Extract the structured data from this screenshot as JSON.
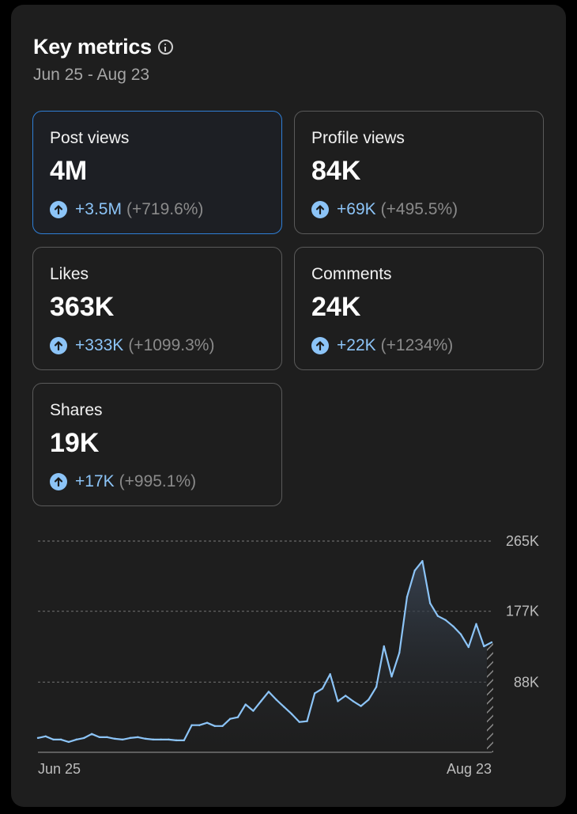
{
  "header": {
    "title": "Key metrics",
    "info_icon": "info-icon",
    "date_range": "Jun 25 - Aug 23"
  },
  "metrics": [
    {
      "label": "Post views",
      "value": "4M",
      "delta": "+3.5M",
      "pct": "(+719.6%)",
      "selected": true
    },
    {
      "label": "Profile views",
      "value": "84K",
      "delta": "+69K",
      "pct": "(+495.5%)",
      "selected": false
    },
    {
      "label": "Likes",
      "value": "363K",
      "delta": "+333K",
      "pct": "(+1099.3%)",
      "selected": false
    },
    {
      "label": "Comments",
      "value": "24K",
      "delta": "+22K",
      "pct": "(+1234%)",
      "selected": false
    },
    {
      "label": "Shares",
      "value": "19K",
      "delta": "+17K",
      "pct": "(+995.1%)",
      "selected": false
    }
  ],
  "colors": {
    "accent": "#8cc4f7",
    "selected_border": "#2f7fd6",
    "line": "#8cc4f7"
  },
  "chart_data": {
    "type": "area",
    "title": "",
    "xlabel": "",
    "ylabel": "",
    "x_tick_labels": [
      "Jun 25",
      "Aug 23"
    ],
    "y_tick_labels": [
      "88K",
      "177K",
      "265K"
    ],
    "y_ticks": [
      88,
      177,
      265
    ],
    "ylim": [
      0,
      265
    ],
    "units": "K",
    "grid": true,
    "series": [
      {
        "name": "Post views",
        "values": [
          18,
          20,
          16,
          16,
          13,
          16,
          18,
          23,
          19,
          19,
          17,
          16,
          18,
          19,
          17,
          16,
          16,
          16,
          15,
          15,
          34,
          34,
          37,
          33,
          33,
          42,
          44,
          60,
          52,
          64,
          76,
          66,
          57,
          48,
          38,
          39,
          74,
          80,
          98,
          64,
          71,
          64,
          58,
          66,
          82,
          133,
          95,
          125,
          195,
          228,
          240,
          187,
          171,
          166,
          158,
          148,
          132,
          161,
          133,
          138
        ]
      }
    ],
    "incomplete_last_segment": true
  }
}
